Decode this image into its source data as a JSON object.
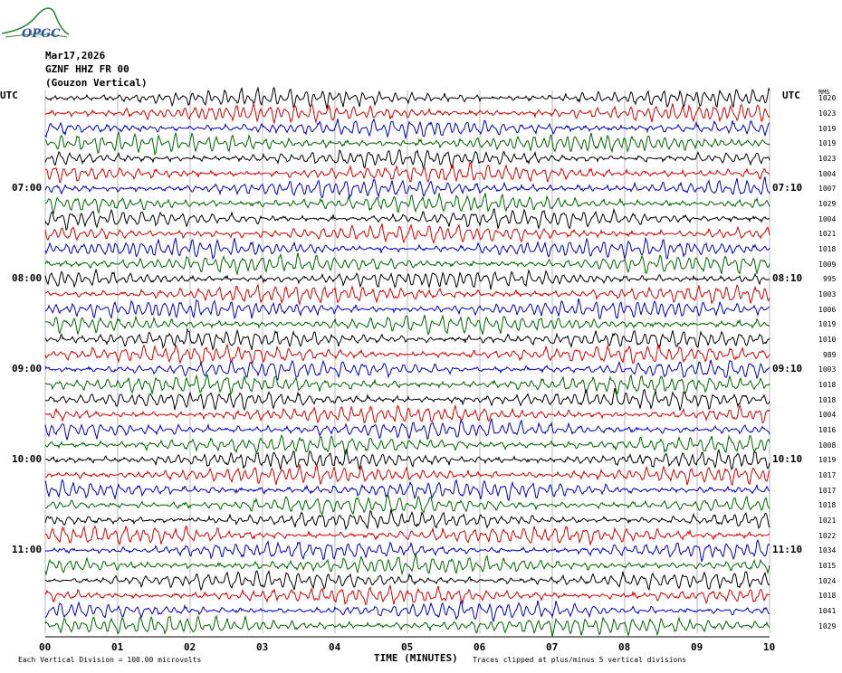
{
  "logo": {
    "text": "OPGC"
  },
  "header": {
    "date": "Mar17,2026",
    "channel": "GZNF HHZ FR 00",
    "station_name": "(Gouzon Vertical)"
  },
  "left_utc_label": "UTC",
  "right_utc_label": "UTC",
  "right_column_header": "RMS",
  "footer": {
    "scale_note": "Each Vertical Division =  100.00 microvolts",
    "xlabel": "TIME (MINUTES)",
    "clip_note": "Traces clipped at plus/minus 5 vertical divisions"
  },
  "colors": {
    "cycle": [
      "#000000",
      "#dd0000",
      "#0000cc",
      "#006600"
    ],
    "grid": "#888888"
  },
  "chart_data": {
    "type": "line",
    "xlabel": "TIME (MINUTES)",
    "xlim": [
      0,
      10
    ],
    "x_ticks": [
      "00",
      "01",
      "02",
      "03",
      "04",
      "05",
      "06",
      "07",
      "08",
      "09",
      "10"
    ],
    "trace_count": 36,
    "minutes_per_trace": 10,
    "left_time_labels": [
      {
        "trace": 6,
        "label": "07:00"
      },
      {
        "trace": 12,
        "label": "08:00"
      },
      {
        "trace": 18,
        "label": "09:00"
      },
      {
        "trace": 24,
        "label": "10:00"
      },
      {
        "trace": 30,
        "label": "11:00"
      }
    ],
    "right_time_labels": [
      {
        "trace": 6,
        "label": "07:10"
      },
      {
        "trace": 12,
        "label": "08:10"
      },
      {
        "trace": 18,
        "label": "09:10"
      },
      {
        "trace": 24,
        "label": "10:10"
      },
      {
        "trace": 30,
        "label": "11:10"
      }
    ],
    "rms_values": [
      "1020",
      "1023",
      "1019",
      "1019",
      "1023",
      "1004",
      "1007",
      "1029",
      "1004",
      "1021",
      "1018",
      "1009",
      "995",
      "1003",
      "1006",
      "1019",
      "1010",
      "989",
      "1003",
      "1018",
      "1018",
      "1004",
      "1016",
      "1008",
      "1019",
      "1017",
      "1017",
      "1018",
      "1021",
      "1022",
      "1034",
      "1015",
      "1024",
      "1018",
      "1041",
      "1029"
    ]
  }
}
